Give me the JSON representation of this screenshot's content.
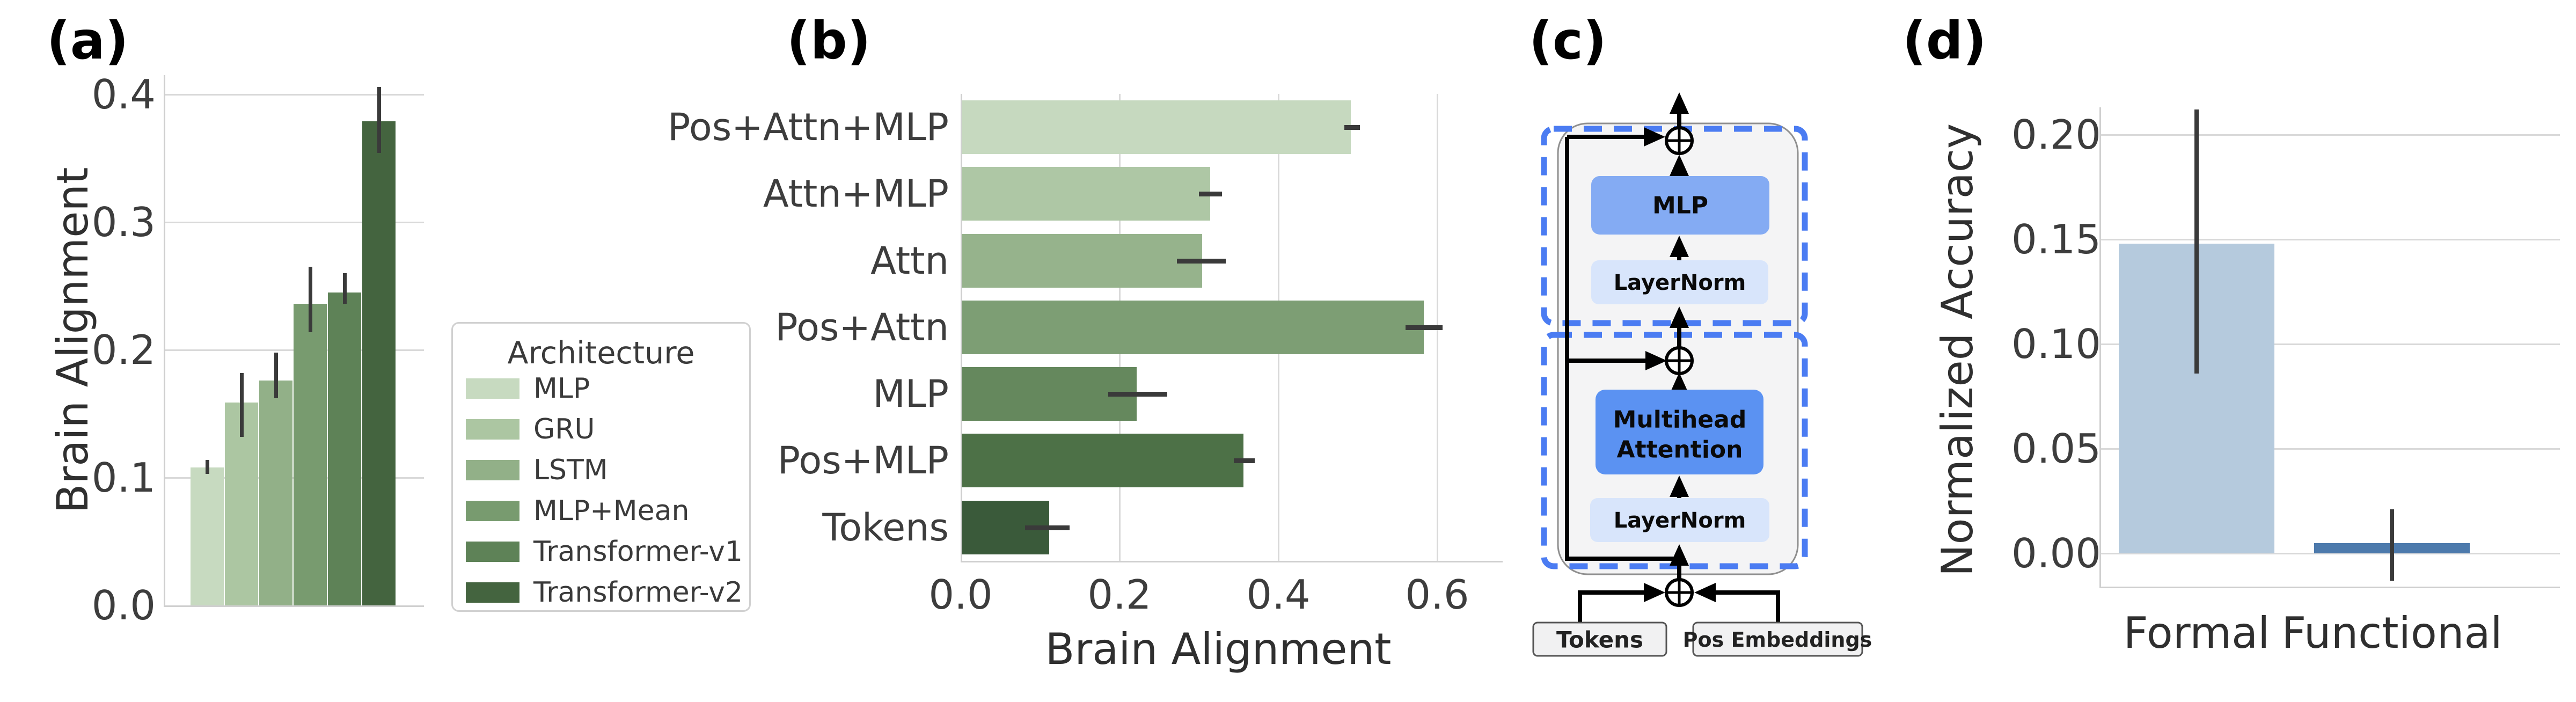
{
  "panels": {
    "a": {
      "label": "(a)",
      "ylabel": "Brain Alignment"
    },
    "b": {
      "label": "(b)",
      "xlabel": "Brain Alignment"
    },
    "c": {
      "label": "(c)"
    },
    "d": {
      "label": "(d)",
      "ylabel": "Normalized Accuracy"
    }
  },
  "legend": {
    "title": "Architecture"
  },
  "colors": {
    "error_bar": "#3a3a3a",
    "grid": "#d9d9d9",
    "spine": "#cfcfcf",
    "dashed_blue": "#4b7cf2",
    "mlp_box": "#84abf3",
    "attention_box": "#5b92f2",
    "layernorm_box": "#d8e5fb",
    "block_fill": "#f4f4f5",
    "block_border": "#8f8f8f",
    "io_fill": "#f1f1f2",
    "io_border": "#555555"
  },
  "chart_data": [
    {
      "id": "a",
      "type": "bar",
      "orientation": "vertical",
      "title": "",
      "xlabel": "",
      "ylabel": "Brain Alignment",
      "categories": [
        "MLP",
        "GRU",
        "LSTM",
        "MLP+Mean",
        "Transformer-v1",
        "Transformer-v2"
      ],
      "values": [
        0.108,
        0.159,
        0.176,
        0.236,
        0.245,
        0.379
      ],
      "err_low": [
        0.103,
        0.132,
        0.162,
        0.214,
        0.236,
        0.354
      ],
      "err_high": [
        0.114,
        0.182,
        0.198,
        0.265,
        0.26,
        0.406
      ],
      "yticks": [
        "0.0",
        "0.1",
        "0.2",
        "0.3",
        "0.4"
      ],
      "ylim": [
        0.0,
        0.415
      ],
      "grid": "horizontal",
      "legend_position": "right",
      "palette": [
        "#c7dac0",
        "#acc6a2",
        "#92b088",
        "#789b6f",
        "#5e8257",
        "#44643f"
      ]
    },
    {
      "id": "b",
      "type": "bar",
      "orientation": "horizontal",
      "title": "",
      "xlabel": "Brain Alignment",
      "ylabel": "",
      "categories": [
        "Pos+Attn+MLP",
        "Attn+MLP",
        "Attn",
        "Pos+Attn",
        "MLP",
        "Pos+MLP",
        "Tokens"
      ],
      "values": [
        0.49,
        0.313,
        0.303,
        0.582,
        0.22,
        0.355,
        0.11
      ],
      "err_low": [
        0.483,
        0.3,
        0.272,
        0.56,
        0.186,
        0.344,
        0.081
      ],
      "err_high": [
        0.503,
        0.329,
        0.334,
        0.607,
        0.26,
        0.37,
        0.137
      ],
      "xticks": [
        "0.0",
        "0.2",
        "0.4",
        "0.6"
      ],
      "xlim": [
        0.0,
        0.683
      ],
      "grid": "vertical",
      "palette": [
        "#c6d9bf",
        "#aec7a5",
        "#96b38c",
        "#7d9e74",
        "#65885d",
        "#4d7147",
        "#3a5a3a"
      ]
    },
    {
      "id": "d",
      "type": "bar",
      "orientation": "vertical",
      "title": "",
      "xlabel": "",
      "ylabel": "Normalized Accuracy",
      "categories": [
        "Formal",
        "Functional"
      ],
      "values": [
        0.148,
        0.005
      ],
      "err_low": [
        0.086,
        -0.013
      ],
      "err_high": [
        0.212,
        0.021
      ],
      "yticks": [
        "0.00",
        "0.05",
        "0.10",
        "0.15",
        "0.20"
      ],
      "ylim": [
        -0.016,
        0.215
      ],
      "grid": "horizontal",
      "palette": [
        "#b5cadd",
        "#4d7aac"
      ]
    }
  ],
  "diagram": {
    "mlp": "MLP",
    "layernorm_top": "LayerNorm",
    "attention_line1": "Multihead",
    "attention_line2": "Attention",
    "layernorm_bottom": "LayerNorm",
    "tokens": "Tokens",
    "pos_embeddings": "Pos Embeddings"
  }
}
